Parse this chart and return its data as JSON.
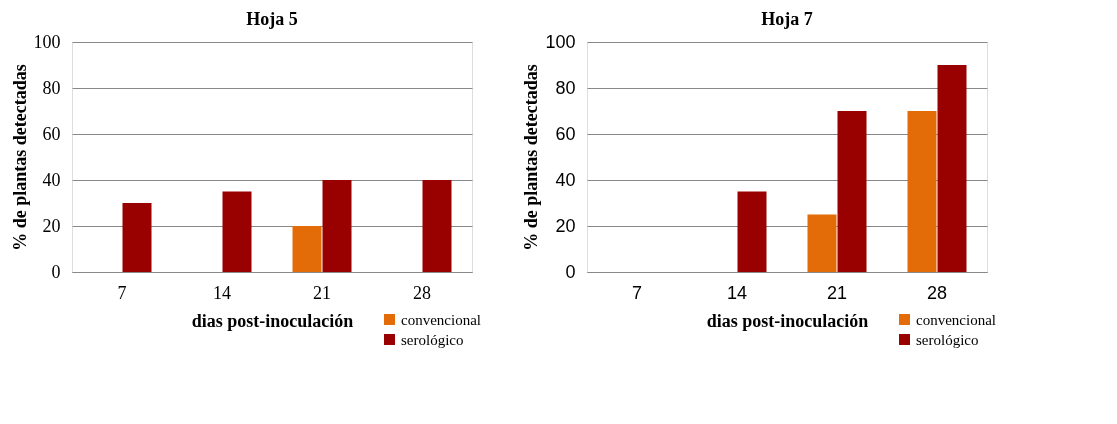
{
  "chart_data": [
    {
      "type": "bar",
      "title": "Hoja 5",
      "xlabel": "dias post-inoculación",
      "ylabel": "% de plantas detectadas",
      "categories": [
        "7",
        "14",
        "21",
        "28"
      ],
      "series": [
        {
          "name": "convencional",
          "color": "#e36c09",
          "values": [
            0,
            0,
            20,
            0
          ]
        },
        {
          "name": "serológico",
          "color": "#990000",
          "values": [
            30,
            35,
            40,
            40
          ]
        }
      ],
      "ylim": [
        0,
        100
      ],
      "yticks": [
        0,
        20,
        40,
        60,
        80,
        100
      ],
      "grid": "y",
      "legend": "bottom right"
    },
    {
      "type": "bar",
      "title": "Hoja 7",
      "xlabel": "dias post-inoculación",
      "ylabel": "% de plantas detectadas",
      "categories": [
        "7",
        "14",
        "21",
        "28"
      ],
      "series": [
        {
          "name": "convencional",
          "color": "#e36c09",
          "values": [
            0,
            0,
            25,
            70
          ]
        },
        {
          "name": "serológico",
          "color": "#990000",
          "values": [
            0,
            35,
            70,
            90
          ]
        }
      ],
      "ylim": [
        0,
        100
      ],
      "yticks": [
        0,
        20,
        40,
        60,
        80,
        100
      ],
      "grid": "y",
      "legend": "bottom right"
    }
  ]
}
